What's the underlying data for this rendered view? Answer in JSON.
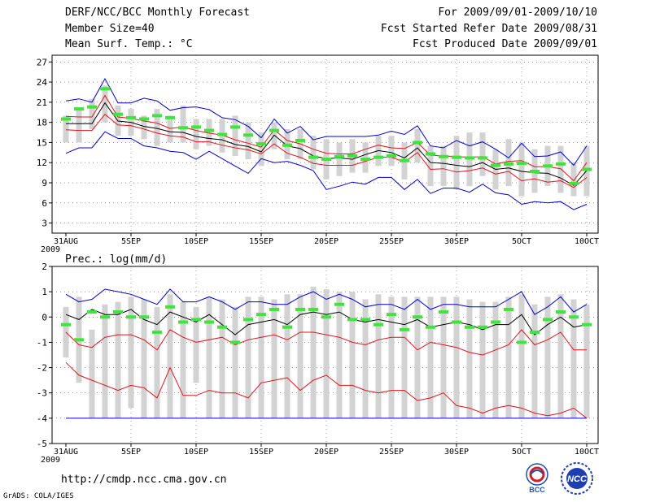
{
  "header": {
    "title": "DERF/NCC/BCC Monthly Forecast",
    "member_size": "Member Size=40",
    "variable": "Mean Surf. Temp.: °C",
    "period": "For 2009/09/01-2009/10/10",
    "started": "Fcst Started Refer Date 2009/08/31",
    "produced": "Fcst Produced Date 2009/09/01"
  },
  "footer": {
    "url": "http://cmdp.ncc.cma.gov.cn",
    "credit": "GrADS: COLA/IGES",
    "logo_left": "BCC",
    "logo_right": "NCC"
  },
  "colors": {
    "envelope": "#0000cc",
    "percentile": "#e0141e",
    "median": "#000000",
    "box": "#d2d2d2",
    "mark": "#3ce63c"
  },
  "chart_data": [
    {
      "type": "line",
      "title": "Mean Surf. Temp.: °C",
      "x": [
        0,
        1,
        2,
        3,
        4,
        5,
        6,
        7,
        8,
        9,
        10,
        11,
        12,
        13,
        14,
        15,
        16,
        17,
        18,
        19,
        20,
        21,
        22,
        23,
        24,
        25,
        26,
        27,
        28,
        29,
        30,
        31,
        32,
        33,
        34,
        35,
        36,
        37,
        38,
        39,
        40
      ],
      "x_ticks": [
        {
          "day": 0,
          "label": "31AUG",
          "sub": "2009"
        },
        {
          "day": 5,
          "label": "5SEP"
        },
        {
          "day": 10,
          "label": "10SEP"
        },
        {
          "day": 15,
          "label": "15SEP"
        },
        {
          "day": 20,
          "label": "20SEP"
        },
        {
          "day": 25,
          "label": "25SEP"
        },
        {
          "day": 30,
          "label": "30SEP"
        },
        {
          "day": 35,
          "label": "5OCT"
        },
        {
          "day": 40,
          "label": "10OCT"
        }
      ],
      "ylim": [
        1.5,
        28
      ],
      "y_ticks": [
        3,
        6,
        9,
        12,
        15,
        18,
        21,
        24,
        27
      ],
      "series": [
        {
          "name": "max",
          "values": [
            13.4,
            14.2,
            14.2,
            16.6,
            15.6,
            15.6,
            14.5,
            14.2,
            13.7,
            13.5,
            12.5,
            13.7,
            12.6,
            11.5,
            10.4,
            12.6,
            12.0,
            12.2,
            11.6,
            10.8,
            8.0,
            8.5,
            9.1,
            8.8,
            9.8,
            9.8,
            8.0,
            9.5,
            7.4,
            8.2,
            8.2,
            7.6,
            8.8,
            7.5,
            7.2,
            5.8,
            6.2,
            6.0,
            6.2,
            5.0,
            5.8
          ]
        },
        {
          "name": "p75",
          "values": [
            16.9,
            16.8,
            16.8,
            19.2,
            17.6,
            17.5,
            17.0,
            16.4,
            16.0,
            15.8,
            15.1,
            15.1,
            14.6,
            14.2,
            13.9,
            13.3,
            14.8,
            13.4,
            12.8,
            11.9,
            11.6,
            11.6,
            11.6,
            12.2,
            12.8,
            12.8,
            12.1,
            13.5,
            11.0,
            11.1,
            10.6,
            10.8,
            11.2,
            10.3,
            10.7,
            9.3,
            9.6,
            9.1,
            9.3,
            8.3,
            9.8
          ]
        },
        {
          "name": "median",
          "values": [
            17.8,
            17.8,
            17.8,
            20.9,
            18.2,
            18.0,
            17.4,
            17.1,
            16.6,
            16.5,
            15.9,
            15.6,
            15.4,
            14.7,
            14.4,
            13.6,
            16.1,
            14.5,
            14.1,
            13.0,
            12.6,
            12.7,
            12.5,
            13.2,
            13.8,
            13.5,
            12.7,
            14.2,
            12.0,
            11.9,
            11.6,
            11.4,
            12.0,
            11.0,
            11.2,
            10.7,
            10.5,
            10.4,
            9.7,
            8.6,
            10.8
          ]
        },
        {
          "name": "p25",
          "values": [
            18.9,
            18.8,
            18.8,
            22.0,
            18.8,
            18.6,
            18.2,
            17.9,
            17.1,
            17.3,
            16.8,
            16.4,
            16.1,
            15.4,
            14.9,
            14.3,
            16.9,
            15.3,
            14.8,
            14.0,
            13.4,
            13.3,
            13.3,
            14.0,
            14.6,
            14.2,
            14.1,
            15.0,
            13.1,
            13.0,
            12.9,
            12.8,
            12.9,
            11.8,
            12.2,
            12.3,
            11.4,
            11.4,
            11.1,
            9.3,
            12.0
          ]
        },
        {
          "name": "min",
          "values": [
            21.2,
            21.5,
            21.0,
            24.5,
            20.9,
            20.9,
            21.6,
            21.2,
            19.8,
            20.2,
            20.3,
            19.9,
            18.7,
            18.4,
            17.4,
            15.7,
            18.5,
            16.4,
            17.4,
            15.4,
            15.9,
            15.9,
            15.9,
            15.9,
            16.1,
            16.7,
            16.2,
            17.5,
            14.5,
            14.2,
            15.3,
            14.5,
            15.1,
            14.0,
            12.7,
            14.9,
            12.9,
            13.0,
            13.6,
            11.6,
            14.5
          ]
        }
      ],
      "boxes": [
        [
          15.0,
          19.0
        ],
        [
          15.0,
          20.0
        ],
        [
          17.0,
          21.5
        ],
        [
          18.0,
          23.5
        ],
        [
          16.0,
          20.5
        ],
        [
          16.0,
          20.0
        ],
        [
          15.5,
          19.0
        ],
        [
          14.5,
          20.0
        ],
        [
          15.0,
          19.0
        ],
        [
          15.0,
          20.5
        ],
        [
          14.0,
          18.5
        ],
        [
          14.5,
          18.5
        ],
        [
          13.5,
          18.5
        ],
        [
          13.0,
          19.0
        ],
        [
          12.5,
          18.0
        ],
        [
          11.5,
          16.5
        ],
        [
          14.0,
          18.0
        ],
        [
          12.5,
          17.0
        ],
        [
          12.5,
          17.0
        ],
        [
          11.0,
          16.0
        ],
        [
          9.5,
          15.5
        ],
        [
          10.0,
          15.0
        ],
        [
          10.5,
          15.5
        ],
        [
          10.5,
          15.0
        ],
        [
          11.5,
          16.0
        ],
        [
          11.5,
          16.0
        ],
        [
          9.5,
          15.0
        ],
        [
          12.0,
          17.0
        ],
        [
          8.5,
          14.5
        ],
        [
          8.5,
          14.5
        ],
        [
          8.0,
          16.0
        ],
        [
          8.5,
          16.5
        ],
        [
          10.0,
          16.5
        ],
        [
          8.0,
          14.0
        ],
        [
          8.5,
          15.5
        ],
        [
          7.0,
          15.0
        ],
        [
          7.5,
          14.0
        ],
        [
          8.5,
          14.5
        ],
        [
          7.5,
          14.5
        ],
        [
          7.0,
          12.0
        ],
        [
          7.0,
          14.5
        ]
      ],
      "marks": [
        18.5,
        20.0,
        20.3,
        23.0,
        19.2,
        18.7,
        18.5,
        19.0,
        18.7,
        17.2,
        17.3,
        16.8,
        16.2,
        17.3,
        16.1,
        14.8,
        16.8,
        14.6,
        15.3,
        12.8,
        12.5,
        12.9,
        13.0,
        12.5,
        12.8,
        13.0,
        12.3,
        15.0,
        13.3,
        12.9,
        12.8,
        12.7,
        12.7,
        11.6,
        11.8,
        11.9,
        10.7,
        11.5,
        11.8,
        8.9,
        11.0
      ]
    },
    {
      "type": "line",
      "title": "Prec.: log(mm/d)",
      "x": [
        0,
        1,
        2,
        3,
        4,
        5,
        6,
        7,
        8,
        9,
        10,
        11,
        12,
        13,
        14,
        15,
        16,
        17,
        18,
        19,
        20,
        21,
        22,
        23,
        24,
        25,
        26,
        27,
        28,
        29,
        30,
        31,
        32,
        33,
        34,
        35,
        36,
        37,
        38,
        39,
        40
      ],
      "x_ticks": [
        {
          "day": 0,
          "label": "31AUG",
          "sub": "2009"
        },
        {
          "day": 5,
          "label": "5SEP"
        },
        {
          "day": 10,
          "label": "10SEP"
        },
        {
          "day": 15,
          "label": "15SEP"
        },
        {
          "day": 20,
          "label": "20SEP"
        },
        {
          "day": 25,
          "label": "25SEP"
        },
        {
          "day": 30,
          "label": "30SEP"
        },
        {
          "day": 35,
          "label": "5OCT"
        },
        {
          "day": 40,
          "label": "10OCT"
        }
      ],
      "ylim": [
        -5,
        2
      ],
      "y_ticks": [
        -5,
        -4,
        -3,
        -2,
        -1,
        0,
        1,
        2
      ],
      "series": [
        {
          "name": "floor",
          "values": [
            -4,
            -4,
            -4,
            -4,
            -4,
            -4,
            -4,
            -4,
            -4,
            -4,
            -4,
            -4,
            -4,
            -4,
            -4,
            -4,
            -4,
            -4,
            -4,
            -4,
            -4,
            -4,
            -4,
            -4,
            -4,
            -4,
            -4,
            -4,
            -4,
            -4,
            -4,
            -4,
            -4,
            -4,
            -4,
            -4,
            -4,
            -4,
            -4,
            -4,
            -4
          ]
        },
        {
          "name": "p10",
          "values": [
            -1.8,
            -2.3,
            -2.5,
            -2.7,
            -2.9,
            -2.7,
            -2.8,
            -3.2,
            -2.0,
            -3.1,
            -3.1,
            -2.9,
            -3.0,
            -3.0,
            -3.2,
            -2.6,
            -2.5,
            -2.4,
            -2.9,
            -2.5,
            -2.3,
            -2.7,
            -2.7,
            -2.9,
            -3.0,
            -2.9,
            -2.9,
            -3.3,
            -3.2,
            -3.0,
            -3.5,
            -3.6,
            -3.8,
            -3.6,
            -3.5,
            -3.6,
            -3.8,
            -3.9,
            -3.8,
            -3.6,
            -4.0
          ]
        },
        {
          "name": "p30",
          "values": [
            -0.6,
            -1.1,
            -1.2,
            -0.8,
            -0.7,
            -0.7,
            -0.9,
            -1.3,
            -0.5,
            -0.8,
            -1.0,
            -0.9,
            -0.8,
            -1.1,
            -0.9,
            -0.8,
            -0.7,
            -0.9,
            -0.6,
            -0.6,
            -0.7,
            -0.8,
            -1.0,
            -1.1,
            -0.9,
            -0.8,
            -0.8,
            -1.3,
            -1.0,
            -1.1,
            -1.2,
            -1.4,
            -1.5,
            -1.3,
            -1.1,
            -0.5,
            -1.1,
            -0.9,
            -0.6,
            -1.3,
            -1.3
          ]
        },
        {
          "name": "median",
          "values": [
            0.1,
            -0.1,
            0.3,
            0.1,
            0.1,
            0.3,
            -0.1,
            -0.3,
            0.2,
            0.0,
            -0.2,
            0.1,
            -0.3,
            -0.7,
            -0.3,
            -0.2,
            -0.1,
            -0.3,
            0.1,
            0.2,
            0.1,
            0.2,
            -0.1,
            -0.2,
            -0.1,
            -0.2,
            -0.3,
            -0.1,
            -0.4,
            -0.3,
            -0.2,
            -0.3,
            -0.5,
            -0.3,
            -0.3,
            0.1,
            -0.7,
            -0.3,
            0.0,
            -0.4,
            -0.3
          ]
        },
        {
          "name": "max",
          "values": [
            0.9,
            0.6,
            0.7,
            1.1,
            1.0,
            0.9,
            0.7,
            0.5,
            1.1,
            0.6,
            0.6,
            0.8,
            0.6,
            0.3,
            0.6,
            0.6,
            0.5,
            0.5,
            0.8,
            1.0,
            0.7,
            0.9,
            0.7,
            0.4,
            0.5,
            0.5,
            0.3,
            0.7,
            0.3,
            0.5,
            0.5,
            0.4,
            0.4,
            0.4,
            0.7,
            1.0,
            0.1,
            0.4,
            0.8,
            0.2,
            0.5
          ]
        }
      ],
      "boxes": [
        [
          -1.6,
          0.4
        ],
        [
          -2.6,
          0.8
        ],
        [
          -4,
          -0.5
        ],
        [
          -4,
          0.5
        ],
        [
          -4,
          0.6
        ],
        [
          -3.6,
          0.8
        ],
        [
          -4,
          0.7
        ],
        [
          -4,
          0.4
        ],
        [
          -4,
          0.9
        ],
        [
          -4,
          0.6
        ],
        [
          -2.6,
          0.4
        ],
        [
          -4,
          0.8
        ],
        [
          -4,
          0.7
        ],
        [
          -4,
          0.4
        ],
        [
          -4,
          0.8
        ],
        [
          -4,
          0.8
        ],
        [
          -4,
          0.7
        ],
        [
          -4,
          0.9
        ],
        [
          -4,
          0.9
        ],
        [
          -4,
          1.2
        ],
        [
          -4,
          1.1
        ],
        [
          -4,
          1.0
        ],
        [
          -4,
          1.0
        ],
        [
          -4,
          0.7
        ],
        [
          -4,
          0.9
        ],
        [
          -4,
          0.8
        ],
        [
          -4,
          0.8
        ],
        [
          -4,
          0.8
        ],
        [
          -4,
          0.8
        ],
        [
          -4,
          0.8
        ],
        [
          -4,
          0.8
        ],
        [
          -4,
          0.7
        ],
        [
          -4,
          0.6
        ],
        [
          -4,
          0.6
        ],
        [
          -4,
          0.8
        ],
        [
          -4,
          0.9
        ],
        [
          -4,
          0.5
        ],
        [
          -4,
          0.8
        ],
        [
          -4,
          0.9
        ],
        [
          -4,
          0.7
        ],
        [
          -4,
          0.5
        ]
      ],
      "marks": [
        -0.3,
        -0.9,
        0.2,
        0.0,
        0.2,
        0.0,
        0.0,
        -0.6,
        0.4,
        -0.2,
        -0.1,
        -0.2,
        -0.4,
        -1.0,
        -0.1,
        0.1,
        0.3,
        -0.4,
        0.3,
        0.3,
        0.0,
        0.5,
        -0.1,
        -0.1,
        -0.3,
        0.1,
        -0.5,
        0.0,
        -0.4,
        0.2,
        -0.2,
        -0.4,
        -0.4,
        -0.2,
        0.3,
        -1.0,
        -0.6,
        -0.1,
        0.2,
        0.0,
        -0.3
      ]
    }
  ]
}
